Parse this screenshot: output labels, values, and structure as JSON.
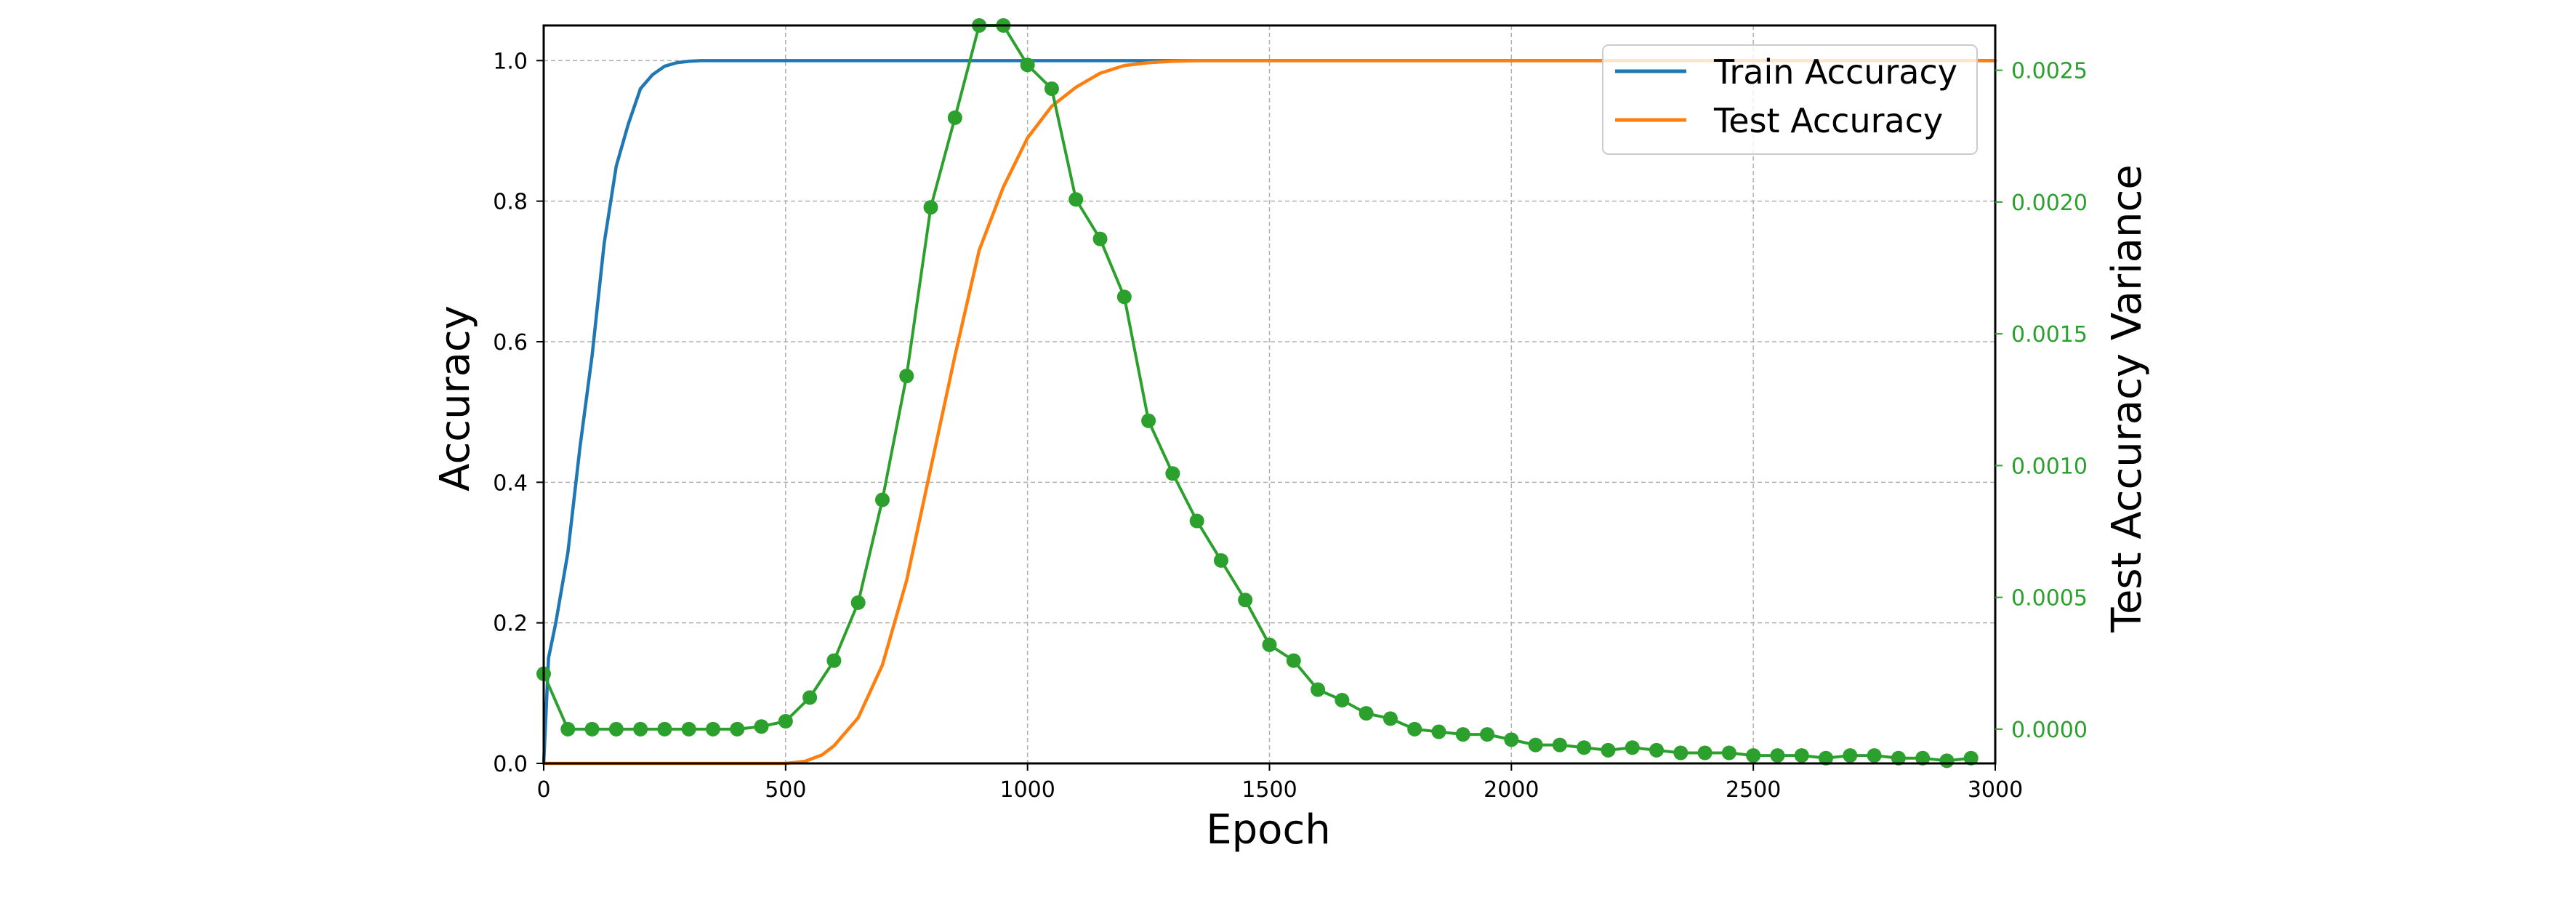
{
  "colors": {
    "train": "#1f77b4",
    "test": "#ff7f0e",
    "variance": "#2ca02c",
    "grid": "#b0b0b0",
    "axis": "#000000"
  },
  "chart_data": {
    "type": "line",
    "title": "",
    "xlabel": "Epoch",
    "ylabel": "Accuracy",
    "ylabel_right": "Test Accuracy Variance",
    "xlim": [
      0,
      3000
    ],
    "ylim": [
      0,
      1.05
    ],
    "ylim_right": [
      -0.00013,
      0.00267
    ],
    "x_ticks": [
      0,
      500,
      1000,
      1500,
      2000,
      2500,
      3000
    ],
    "x_tick_labels": [
      "0",
      "500",
      "1000",
      "1500",
      "2000",
      "2500",
      "3000"
    ],
    "y_ticks": [
      0.0,
      0.2,
      0.4,
      0.6,
      0.8,
      1.0
    ],
    "y_tick_labels": [
      "0.0",
      "0.2",
      "0.4",
      "0.6",
      "0.8",
      "1.0"
    ],
    "y_right_ticks": [
      0.0,
      0.0005,
      0.001,
      0.0015,
      0.002,
      0.0025
    ],
    "y_right_tick_labels": [
      "0.0000",
      "0.0005",
      "0.0010",
      "0.0015",
      "0.0020",
      "0.0025"
    ],
    "grid": true,
    "legend": {
      "placement": "top-right",
      "entries": [
        "Train Accuracy",
        "Test Accuracy"
      ]
    },
    "series": [
      {
        "name": "Train Accuracy",
        "axis": "left",
        "color": "#1f77b4",
        "x": [
          0,
          10,
          25,
          50,
          75,
          100,
          125,
          150,
          175,
          200,
          225,
          250,
          275,
          300,
          325,
          350,
          400,
          3000
        ],
        "values": [
          0.0,
          0.15,
          0.2,
          0.3,
          0.45,
          0.58,
          0.74,
          0.85,
          0.91,
          0.96,
          0.98,
          0.992,
          0.997,
          0.999,
          1.0,
          1.0,
          1.0,
          1.0
        ]
      },
      {
        "name": "Test Accuracy",
        "axis": "left",
        "color": "#ff7f0e",
        "x": [
          0,
          450,
          500,
          540,
          575,
          600,
          650,
          700,
          750,
          800,
          850,
          900,
          950,
          1000,
          1050,
          1100,
          1150,
          1200,
          1250,
          1300,
          1350,
          1400,
          3000
        ],
        "values": [
          0.0,
          0.0,
          0.0,
          0.003,
          0.012,
          0.025,
          0.065,
          0.14,
          0.26,
          0.42,
          0.58,
          0.73,
          0.82,
          0.89,
          0.935,
          0.962,
          0.982,
          0.993,
          0.997,
          0.999,
          1.0,
          1.0,
          1.0
        ]
      },
      {
        "name": "",
        "axis": "right",
        "color": "#2ca02c",
        "x": [
          0,
          50,
          100,
          150,
          200,
          250,
          300,
          350,
          400,
          450,
          500,
          550,
          600,
          650,
          700,
          750,
          800,
          850,
          900,
          950,
          1000,
          1050,
          1100,
          1150,
          1200,
          1250,
          1300,
          1350,
          1400,
          1450,
          1500,
          1550,
          1600,
          1650,
          1700,
          1750,
          1800,
          1850,
          1900,
          1950,
          2000,
          2050,
          2100,
          2150,
          2200,
          2250,
          2300,
          2350,
          2400,
          2450,
          2500,
          2550,
          2600,
          2650,
          2700,
          2750,
          2800,
          2850,
          2900,
          2950
        ],
        "values": [
          0.00021,
          0.0,
          0.0,
          0.0,
          0.0,
          0.0,
          0.0,
          0.0,
          0.0,
          1e-05,
          3e-05,
          0.00012,
          0.00026,
          0.00048,
          0.00087,
          0.00134,
          0.00198,
          0.00232,
          0.00267,
          0.00267,
          0.00252,
          0.00243,
          0.00201,
          0.00186,
          0.00164,
          0.00117,
          0.00097,
          0.00079,
          0.00064,
          0.00049,
          0.00032,
          0.00026,
          0.00015,
          0.00011,
          6e-05,
          4e-05,
          0.0,
          -1e-05,
          -2e-05,
          -2e-05,
          -4e-05,
          -6e-05,
          -6e-05,
          -7e-05,
          -8e-05,
          -7e-05,
          -8e-05,
          -9e-05,
          -9e-05,
          -9e-05,
          -0.0001,
          -0.0001,
          -0.0001,
          -0.00011,
          -0.0001,
          -0.0001,
          -0.00011,
          -0.00011,
          -0.00012,
          -0.00011
        ]
      }
    ]
  }
}
